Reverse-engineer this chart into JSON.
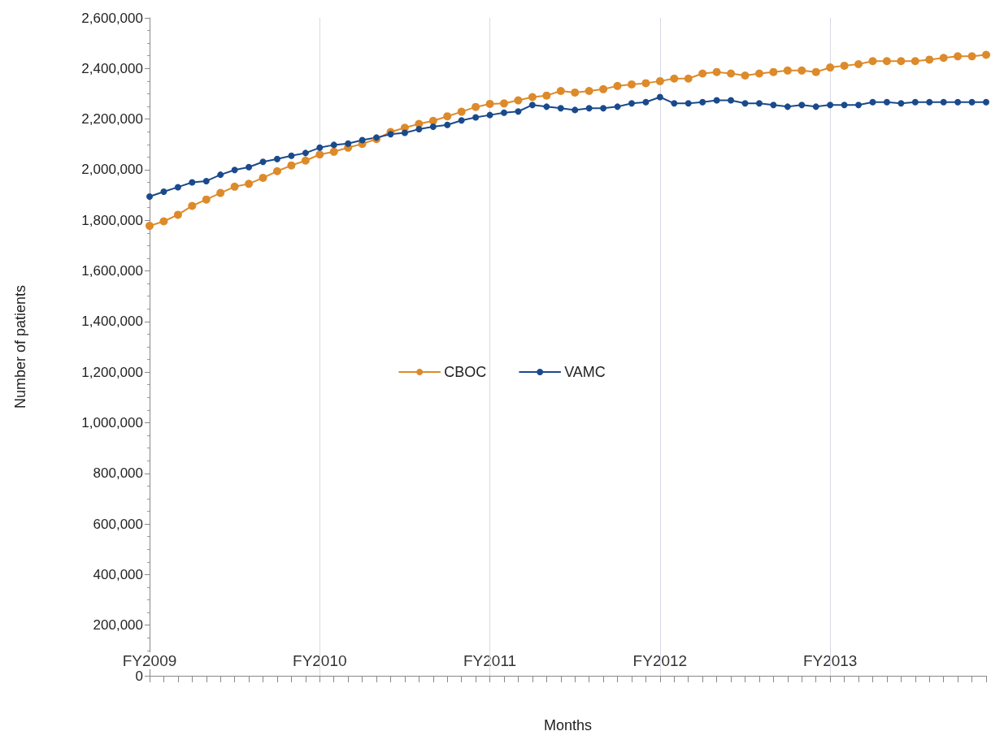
{
  "chart_data": {
    "type": "line",
    "xlabel": "Months",
    "ylabel": "Number of patients",
    "categories": [
      "FY2009",
      null,
      null,
      null,
      null,
      null,
      null,
      null,
      null,
      null,
      null,
      null,
      "FY2010",
      null,
      null,
      null,
      null,
      null,
      null,
      null,
      null,
      null,
      null,
      null,
      "FY2011",
      null,
      null,
      null,
      null,
      null,
      null,
      null,
      null,
      null,
      null,
      null,
      "FY2012",
      null,
      null,
      null,
      null,
      null,
      null,
      null,
      null,
      null,
      null,
      null,
      "FY2013",
      null,
      null,
      null,
      null,
      null,
      null,
      null,
      null,
      null,
      null,
      null
    ],
    "series": [
      {
        "name": "CBOC",
        "color": "#dd8a2a",
        "values": [
          1778000,
          1796000,
          1822000,
          1857000,
          1882000,
          1908000,
          1933000,
          1944000,
          1968000,
          1994000,
          2017000,
          2036000,
          2060000,
          2071000,
          2087000,
          2102000,
          2121000,
          2149000,
          2166000,
          2181000,
          2193000,
          2211000,
          2229000,
          2248000,
          2260000,
          2262000,
          2274000,
          2287000,
          2293000,
          2311000,
          2305000,
          2311000,
          2318000,
          2331000,
          2337000,
          2342000,
          2350000,
          2360000,
          2360000,
          2380000,
          2386000,
          2380000,
          2372000,
          2380000,
          2386000,
          2392000,
          2392000,
          2386000,
          2404000,
          2411000,
          2417000,
          2429000,
          2429000,
          2429000,
          2429000,
          2435000,
          2442000,
          2448000,
          2448000,
          2454000
        ]
      },
      {
        "name": "VAMC",
        "color": "#1a4a8c",
        "values": [
          1894000,
          1913000,
          1931000,
          1950000,
          1955000,
          1980000,
          1999000,
          2010000,
          2031000,
          2042000,
          2055000,
          2066000,
          2087000,
          2098000,
          2103000,
          2117000,
          2127000,
          2140000,
          2146000,
          2160000,
          2170000,
          2177000,
          2195000,
          2207000,
          2216000,
          2225000,
          2230000,
          2256000,
          2249000,
          2243000,
          2236000,
          2243000,
          2243000,
          2249000,
          2262000,
          2267000,
          2287000,
          2262000,
          2262000,
          2267000,
          2274000,
          2274000,
          2262000,
          2262000,
          2256000,
          2249000,
          2256000,
          2249000,
          2256000,
          2256000,
          2256000,
          2267000,
          2267000,
          2262000,
          2267000,
          2267000,
          2267000,
          2267000,
          2267000,
          2267000
        ]
      }
    ],
    "ylim": [
      0,
      2600000
    ],
    "yticks": [
      {
        "value": 0,
        "label": "0"
      },
      {
        "value": 200000,
        "label": "200,000"
      },
      {
        "value": 400000,
        "label": "400,000"
      },
      {
        "value": 600000,
        "label": "600,000"
      },
      {
        "value": 800000,
        "label": "800,000"
      },
      {
        "value": 1000000,
        "label": "1,000,000"
      },
      {
        "value": 1200000,
        "label": "1,200,000"
      },
      {
        "value": 1400000,
        "label": "1,400,000"
      },
      {
        "value": 1600000,
        "label": "1,600,000"
      },
      {
        "value": 1800000,
        "label": "1,800,000"
      },
      {
        "value": 2000000,
        "label": "2,000,000"
      },
      {
        "value": 2200000,
        "label": "2,200,000"
      },
      {
        "value": 2400000,
        "label": "2,400,000"
      },
      {
        "value": 2600000,
        "label": "2,600,000"
      }
    ],
    "ref_lines": [
      {
        "axis": "x",
        "value": "FY2010",
        "color": "#d8d8e8"
      },
      {
        "axis": "x",
        "value": "FY2011",
        "color": "#d8d8e8"
      },
      {
        "axis": "x",
        "value": "FY2012",
        "color": "#d8d8e8"
      },
      {
        "axis": "x",
        "value": "FY2013",
        "color": "#d8d8e8"
      }
    ],
    "legend": "center",
    "marker": "circle",
    "line_style": "solid",
    "grid": false
  }
}
